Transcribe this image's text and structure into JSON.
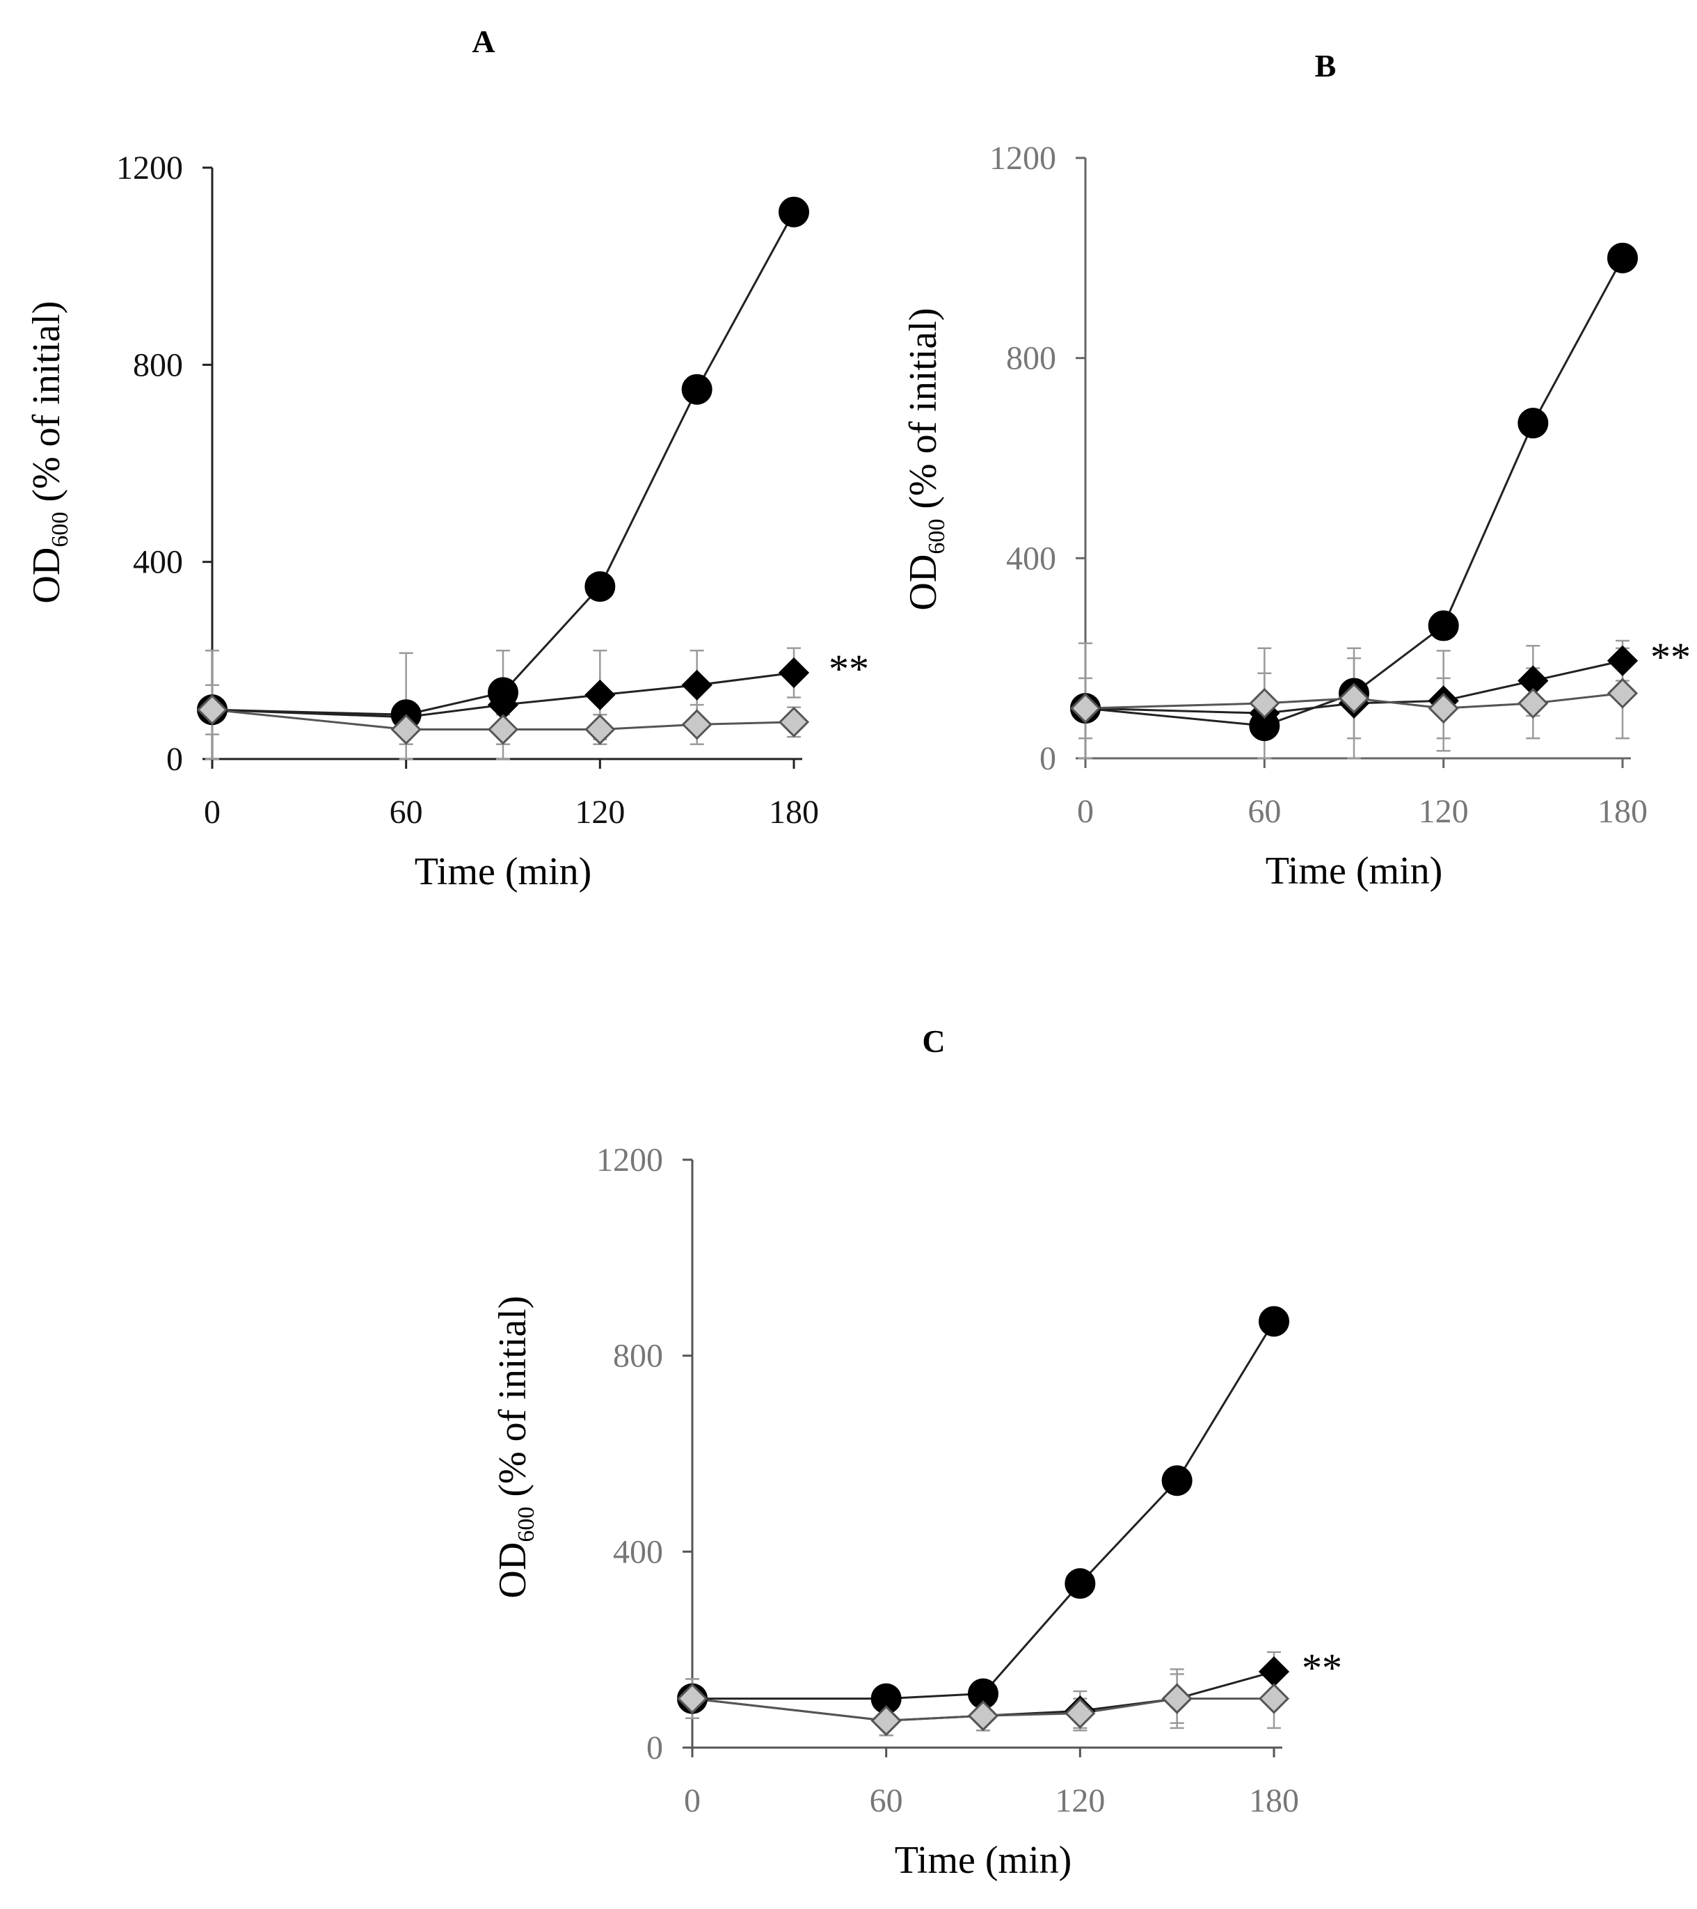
{
  "chart_data": [
    {
      "type": "line",
      "title": "A",
      "xlabel": "Time (min)",
      "ylabel_main": "OD",
      "ylabel_sub": "600",
      "ylabel_rest": " (% of initial)",
      "xticks": [
        "0",
        "60",
        "120",
        "180"
      ],
      "yticks": [
        "0",
        "400",
        "800",
        "1200"
      ],
      "xlim": [
        0,
        180
      ],
      "ylim": [
        0,
        1200
      ],
      "significance": "**",
      "series": [
        {
          "name": "black circles",
          "marker": "circle",
          "fill": "#000000",
          "x": [
            0,
            60,
            90,
            120,
            150,
            180
          ],
          "values": [
            100,
            90,
            135,
            350,
            750,
            1110
          ]
        },
        {
          "name": "black diamonds",
          "marker": "diamond",
          "fill": "#000000",
          "x": [
            0,
            60,
            90,
            120,
            150,
            180
          ],
          "values": [
            100,
            85,
            110,
            130,
            150,
            175
          ],
          "error": [
            120,
            130,
            110,
            90,
            70,
            50
          ]
        },
        {
          "name": "grey diamonds",
          "marker": "diamond",
          "fill": "#c8c8c8",
          "x": [
            0,
            60,
            90,
            120,
            150,
            180
          ],
          "values": [
            100,
            60,
            60,
            60,
            70,
            75
          ],
          "error": [
            50,
            30,
            30,
            30,
            40,
            30
          ]
        }
      ]
    },
    {
      "type": "line",
      "title": "B",
      "xlabel": "Time (min)",
      "ylabel_main": "OD",
      "ylabel_sub": "600",
      "ylabel_rest": " (% of initial)",
      "xticks": [
        "0",
        "60",
        "120",
        "180"
      ],
      "yticks": [
        "0",
        "400",
        "800",
        "1200"
      ],
      "xlim": [
        0,
        180
      ],
      "ylim": [
        0,
        1200
      ],
      "significance": "**",
      "series": [
        {
          "name": "black circles",
          "marker": "circle",
          "fill": "#000000",
          "x": [
            0,
            60,
            90,
            120,
            150,
            180
          ],
          "values": [
            100,
            65,
            130,
            265,
            670,
            1000
          ]
        },
        {
          "name": "black diamonds",
          "marker": "diamond",
          "fill": "#000000",
          "x": [
            0,
            60,
            90,
            120,
            150,
            180
          ],
          "values": [
            100,
            90,
            110,
            115,
            155,
            195
          ],
          "error": [
            130,
            130,
            110,
            100,
            70,
            40
          ]
        },
        {
          "name": "grey diamonds",
          "marker": "diamond",
          "fill": "#c8c8c8",
          "x": [
            0,
            60,
            90,
            120,
            150,
            180
          ],
          "values": [
            100,
            110,
            120,
            100,
            110,
            130
          ],
          "error": [
            60,
            60,
            80,
            60,
            70,
            90
          ]
        }
      ]
    },
    {
      "type": "line",
      "title": "C",
      "xlabel": "Time (min)",
      "ylabel_main": "OD",
      "ylabel_sub": "600",
      "ylabel_rest": " (% of initial)",
      "xticks": [
        "0",
        "60",
        "120",
        "180"
      ],
      "yticks": [
        "0",
        "400",
        "800",
        "1200"
      ],
      "xlim": [
        0,
        180
      ],
      "ylim": [
        0,
        1200
      ],
      "significance": "**",
      "series": [
        {
          "name": "black circles",
          "marker": "circle",
          "fill": "#000000",
          "x": [
            0,
            60,
            90,
            120,
            150,
            180
          ],
          "values": [
            100,
            100,
            110,
            335,
            545,
            870
          ]
        },
        {
          "name": "black diamonds",
          "marker": "diamond",
          "fill": "#000000",
          "x": [
            0,
            60,
            90,
            120,
            150,
            180
          ],
          "values": [
            100,
            55,
            65,
            75,
            100,
            155
          ],
          "error": [
            40,
            30,
            30,
            40,
            60,
            40
          ]
        },
        {
          "name": "grey diamonds",
          "marker": "diamond",
          "fill": "#c8c8c8",
          "x": [
            0,
            60,
            90,
            120,
            150,
            180
          ],
          "values": [
            100,
            55,
            65,
            70,
            100,
            100
          ],
          "error": [
            40,
            30,
            30,
            30,
            50,
            60
          ]
        }
      ]
    }
  ]
}
